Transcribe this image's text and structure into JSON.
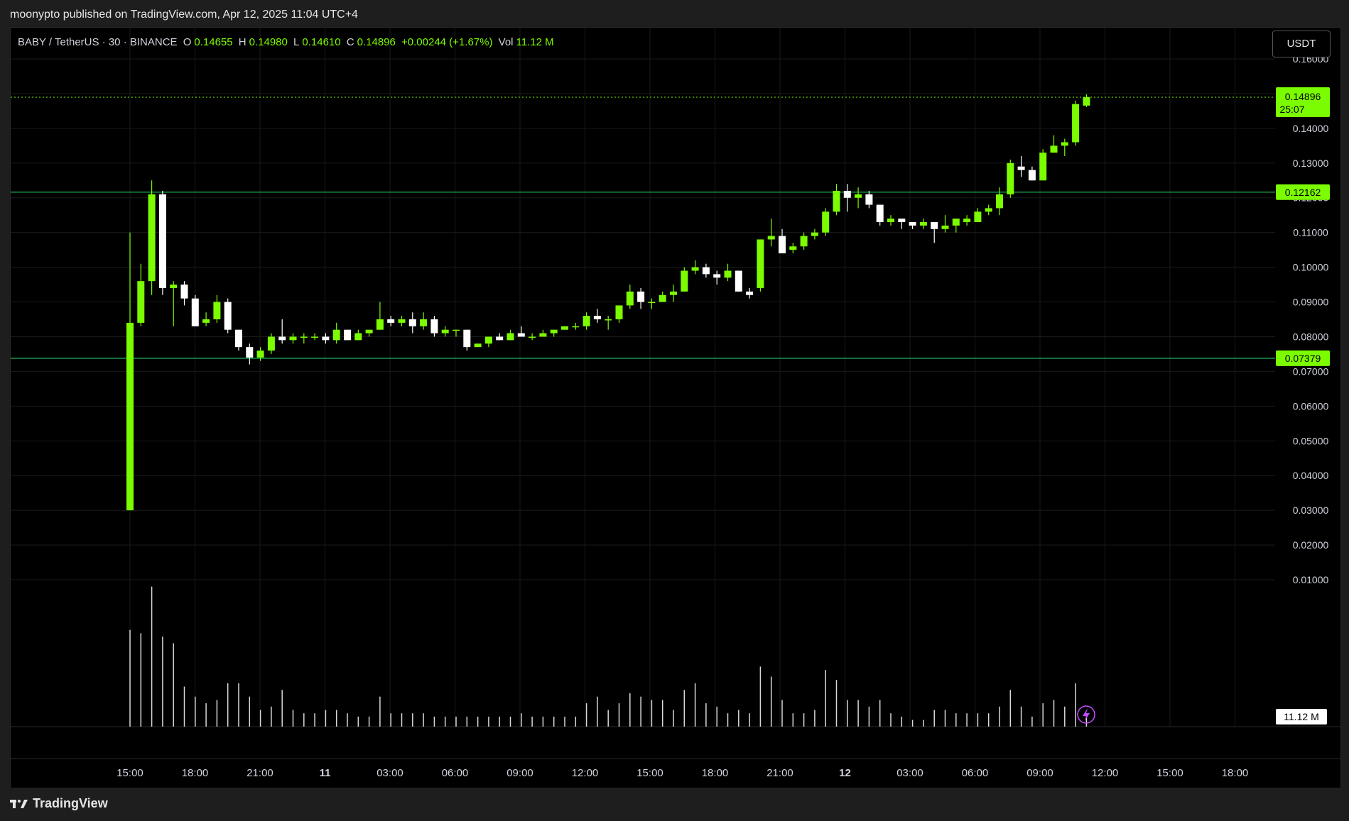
{
  "header": {
    "publish_text": "moonypto published on TradingView.com, Apr 12, 2025 11:04 UTC+4"
  },
  "legend": {
    "symbol": "BABY / TetherUS · 30 · BINANCE",
    "o_label": "O",
    "o_value": "0.14655",
    "h_label": "H",
    "h_value": "0.14980",
    "l_label": "L",
    "l_value": "0.14610",
    "c_label": "C",
    "c_value": "0.14896",
    "change": "+0.00244 (+1.67%)",
    "vol_label": "Vol",
    "vol_value": "11.12 M"
  },
  "currency_button": "USDT",
  "footer": {
    "brand": "TradingView"
  },
  "colors": {
    "up": "#7cfc00",
    "down": "#ffffff",
    "line": "#22c55e",
    "grid": "#1a1a1a",
    "bg": "#000000"
  },
  "chart_data": {
    "type": "candlestick",
    "title": "",
    "ylim": [
      0.0,
      0.165
    ],
    "y_ticks": [
      "0.16000",
      "0.15000",
      "0.14000",
      "0.13000",
      "0.12000",
      "0.11000",
      "0.10000",
      "0.09000",
      "0.08000",
      "0.07000",
      "0.06000",
      "0.05000",
      "0.04000",
      "0.03000",
      "0.02000",
      "0.01000"
    ],
    "x_ticks": [
      "15:00",
      "18:00",
      "21:00",
      "11",
      "03:00",
      "06:00",
      "09:00",
      "12:00",
      "15:00",
      "18:00",
      "21:00",
      "12",
      "03:00",
      "06:00",
      "09:00",
      "12:00",
      "15:00",
      "18:00"
    ],
    "bold_x_ticks": [
      "11",
      "12"
    ],
    "last_price": "0.14896",
    "countdown": "25:07",
    "volume_label": "11.12 M",
    "horizontal_lines": [
      {
        "value": 0.12162,
        "label": "0.12162"
      },
      {
        "value": 0.07379,
        "label": "0.07379"
      }
    ],
    "candles": [
      {
        "o": 0.03,
        "h": 0.11,
        "l": 0.03,
        "c": 0.084,
        "v": 2.9
      },
      {
        "o": 0.084,
        "h": 0.101,
        "l": 0.083,
        "c": 0.096,
        "v": 2.8
      },
      {
        "o": 0.096,
        "h": 0.125,
        "l": 0.092,
        "c": 0.121,
        "v": 4.2
      },
      {
        "o": 0.121,
        "h": 0.122,
        "l": 0.092,
        "c": 0.094,
        "v": 2.7
      },
      {
        "o": 0.094,
        "h": 0.096,
        "l": 0.083,
        "c": 0.095,
        "v": 2.5
      },
      {
        "o": 0.095,
        "h": 0.096,
        "l": 0.089,
        "c": 0.091,
        "v": 1.2
      },
      {
        "o": 0.091,
        "h": 0.092,
        "l": 0.083,
        "c": 0.083,
        "v": 0.9
      },
      {
        "o": 0.084,
        "h": 0.087,
        "l": 0.083,
        "c": 0.085,
        "v": 0.7
      },
      {
        "o": 0.085,
        "h": 0.092,
        "l": 0.084,
        "c": 0.09,
        "v": 0.8
      },
      {
        "o": 0.09,
        "h": 0.091,
        "l": 0.081,
        "c": 0.082,
        "v": 1.3
      },
      {
        "o": 0.082,
        "h": 0.082,
        "l": 0.076,
        "c": 0.077,
        "v": 1.3
      },
      {
        "o": 0.077,
        "h": 0.078,
        "l": 0.072,
        "c": 0.074,
        "v": 0.9
      },
      {
        "o": 0.074,
        "h": 0.077,
        "l": 0.073,
        "c": 0.076,
        "v": 0.5
      },
      {
        "o": 0.076,
        "h": 0.081,
        "l": 0.075,
        "c": 0.08,
        "v": 0.6
      },
      {
        "o": 0.08,
        "h": 0.085,
        "l": 0.078,
        "c": 0.079,
        "v": 1.1
      },
      {
        "o": 0.079,
        "h": 0.081,
        "l": 0.078,
        "c": 0.08,
        "v": 0.5
      },
      {
        "o": 0.08,
        "h": 0.081,
        "l": 0.078,
        "c": 0.08,
        "v": 0.4
      },
      {
        "o": 0.08,
        "h": 0.081,
        "l": 0.079,
        "c": 0.08,
        "v": 0.4
      },
      {
        "o": 0.08,
        "h": 0.081,
        "l": 0.078,
        "c": 0.079,
        "v": 0.5
      },
      {
        "o": 0.079,
        "h": 0.084,
        "l": 0.078,
        "c": 0.082,
        "v": 0.5
      },
      {
        "o": 0.082,
        "h": 0.082,
        "l": 0.079,
        "c": 0.079,
        "v": 0.4
      },
      {
        "o": 0.079,
        "h": 0.082,
        "l": 0.079,
        "c": 0.081,
        "v": 0.3
      },
      {
        "o": 0.081,
        "h": 0.082,
        "l": 0.08,
        "c": 0.082,
        "v": 0.3
      },
      {
        "o": 0.082,
        "h": 0.09,
        "l": 0.082,
        "c": 0.085,
        "v": 0.9
      },
      {
        "o": 0.085,
        "h": 0.086,
        "l": 0.083,
        "c": 0.084,
        "v": 0.4
      },
      {
        "o": 0.084,
        "h": 0.086,
        "l": 0.083,
        "c": 0.085,
        "v": 0.4
      },
      {
        "o": 0.085,
        "h": 0.087,
        "l": 0.081,
        "c": 0.083,
        "v": 0.4
      },
      {
        "o": 0.083,
        "h": 0.087,
        "l": 0.082,
        "c": 0.085,
        "v": 0.4
      },
      {
        "o": 0.085,
        "h": 0.086,
        "l": 0.08,
        "c": 0.081,
        "v": 0.3
      },
      {
        "o": 0.081,
        "h": 0.083,
        "l": 0.08,
        "c": 0.082,
        "v": 0.3
      },
      {
        "o": 0.082,
        "h": 0.082,
        "l": 0.08,
        "c": 0.082,
        "v": 0.3
      },
      {
        "o": 0.082,
        "h": 0.082,
        "l": 0.076,
        "c": 0.077,
        "v": 0.3
      },
      {
        "o": 0.077,
        "h": 0.078,
        "l": 0.077,
        "c": 0.078,
        "v": 0.3
      },
      {
        "o": 0.078,
        "h": 0.08,
        "l": 0.077,
        "c": 0.08,
        "v": 0.3
      },
      {
        "o": 0.08,
        "h": 0.081,
        "l": 0.079,
        "c": 0.079,
        "v": 0.3
      },
      {
        "o": 0.079,
        "h": 0.082,
        "l": 0.079,
        "c": 0.081,
        "v": 0.3
      },
      {
        "o": 0.081,
        "h": 0.083,
        "l": 0.08,
        "c": 0.08,
        "v": 0.4
      },
      {
        "o": 0.08,
        "h": 0.081,
        "l": 0.079,
        "c": 0.08,
        "v": 0.3
      },
      {
        "o": 0.08,
        "h": 0.082,
        "l": 0.08,
        "c": 0.081,
        "v": 0.3
      },
      {
        "o": 0.081,
        "h": 0.082,
        "l": 0.08,
        "c": 0.082,
        "v": 0.3
      },
      {
        "o": 0.082,
        "h": 0.083,
        "l": 0.082,
        "c": 0.083,
        "v": 0.3
      },
      {
        "o": 0.083,
        "h": 0.084,
        "l": 0.082,
        "c": 0.083,
        "v": 0.3
      },
      {
        "o": 0.083,
        "h": 0.087,
        "l": 0.082,
        "c": 0.086,
        "v": 0.7
      },
      {
        "o": 0.086,
        "h": 0.088,
        "l": 0.084,
        "c": 0.085,
        "v": 0.9
      },
      {
        "o": 0.085,
        "h": 0.086,
        "l": 0.082,
        "c": 0.085,
        "v": 0.5
      },
      {
        "o": 0.085,
        "h": 0.089,
        "l": 0.084,
        "c": 0.089,
        "v": 0.7
      },
      {
        "o": 0.089,
        "h": 0.095,
        "l": 0.088,
        "c": 0.093,
        "v": 1.0
      },
      {
        "o": 0.093,
        "h": 0.094,
        "l": 0.088,
        "c": 0.09,
        "v": 0.9
      },
      {
        "o": 0.09,
        "h": 0.091,
        "l": 0.088,
        "c": 0.09,
        "v": 0.8
      },
      {
        "o": 0.09,
        "h": 0.093,
        "l": 0.09,
        "c": 0.092,
        "v": 0.8
      },
      {
        "o": 0.092,
        "h": 0.095,
        "l": 0.09,
        "c": 0.093,
        "v": 0.5
      },
      {
        "o": 0.093,
        "h": 0.1,
        "l": 0.093,
        "c": 0.099,
        "v": 1.1
      },
      {
        "o": 0.099,
        "h": 0.102,
        "l": 0.098,
        "c": 0.1,
        "v": 1.3
      },
      {
        "o": 0.1,
        "h": 0.101,
        "l": 0.097,
        "c": 0.098,
        "v": 0.7
      },
      {
        "o": 0.098,
        "h": 0.099,
        "l": 0.095,
        "c": 0.097,
        "v": 0.6
      },
      {
        "o": 0.097,
        "h": 0.101,
        "l": 0.096,
        "c": 0.099,
        "v": 0.4
      },
      {
        "o": 0.099,
        "h": 0.099,
        "l": 0.093,
        "c": 0.093,
        "v": 0.5
      },
      {
        "o": 0.093,
        "h": 0.094,
        "l": 0.091,
        "c": 0.092,
        "v": 0.4
      },
      {
        "o": 0.094,
        "h": 0.108,
        "l": 0.093,
        "c": 0.108,
        "v": 1.8
      },
      {
        "o": 0.108,
        "h": 0.114,
        "l": 0.106,
        "c": 0.109,
        "v": 1.5
      },
      {
        "o": 0.109,
        "h": 0.111,
        "l": 0.104,
        "c": 0.104,
        "v": 0.8
      },
      {
        "o": 0.105,
        "h": 0.107,
        "l": 0.104,
        "c": 0.106,
        "v": 0.4
      },
      {
        "o": 0.106,
        "h": 0.11,
        "l": 0.105,
        "c": 0.109,
        "v": 0.4
      },
      {
        "o": 0.109,
        "h": 0.111,
        "l": 0.108,
        "c": 0.11,
        "v": 0.5
      },
      {
        "o": 0.11,
        "h": 0.117,
        "l": 0.109,
        "c": 0.116,
        "v": 1.7
      },
      {
        "o": 0.116,
        "h": 0.124,
        "l": 0.115,
        "c": 0.122,
        "v": 1.4
      },
      {
        "o": 0.122,
        "h": 0.124,
        "l": 0.116,
        "c": 0.12,
        "v": 0.8
      },
      {
        "o": 0.12,
        "h": 0.123,
        "l": 0.117,
        "c": 0.121,
        "v": 0.8
      },
      {
        "o": 0.121,
        "h": 0.122,
        "l": 0.117,
        "c": 0.118,
        "v": 0.6
      },
      {
        "o": 0.118,
        "h": 0.118,
        "l": 0.112,
        "c": 0.113,
        "v": 0.8
      },
      {
        "o": 0.113,
        "h": 0.115,
        "l": 0.112,
        "c": 0.114,
        "v": 0.4
      },
      {
        "o": 0.114,
        "h": 0.114,
        "l": 0.111,
        "c": 0.113,
        "v": 0.3
      },
      {
        "o": 0.113,
        "h": 0.113,
        "l": 0.111,
        "c": 0.112,
        "v": 0.2
      },
      {
        "o": 0.112,
        "h": 0.114,
        "l": 0.111,
        "c": 0.113,
        "v": 0.2
      },
      {
        "o": 0.113,
        "h": 0.113,
        "l": 0.107,
        "c": 0.111,
        "v": 0.5
      },
      {
        "o": 0.111,
        "h": 0.115,
        "l": 0.11,
        "c": 0.112,
        "v": 0.5
      },
      {
        "o": 0.112,
        "h": 0.114,
        "l": 0.11,
        "c": 0.114,
        "v": 0.4
      },
      {
        "o": 0.113,
        "h": 0.115,
        "l": 0.112,
        "c": 0.114,
        "v": 0.4
      },
      {
        "o": 0.113,
        "h": 0.117,
        "l": 0.113,
        "c": 0.116,
        "v": 0.4
      },
      {
        "o": 0.116,
        "h": 0.118,
        "l": 0.115,
        "c": 0.117,
        "v": 0.4
      },
      {
        "o": 0.117,
        "h": 0.123,
        "l": 0.115,
        "c": 0.121,
        "v": 0.6
      },
      {
        "o": 0.121,
        "h": 0.131,
        "l": 0.12,
        "c": 0.13,
        "v": 1.1
      },
      {
        "o": 0.129,
        "h": 0.132,
        "l": 0.126,
        "c": 0.128,
        "v": 0.6
      },
      {
        "o": 0.128,
        "h": 0.129,
        "l": 0.125,
        "c": 0.125,
        "v": 0.3
      },
      {
        "o": 0.125,
        "h": 0.134,
        "l": 0.125,
        "c": 0.133,
        "v": 0.7
      },
      {
        "o": 0.133,
        "h": 0.138,
        "l": 0.133,
        "c": 0.135,
        "v": 0.8
      },
      {
        "o": 0.135,
        "h": 0.137,
        "l": 0.132,
        "c": 0.136,
        "v": 0.6
      },
      {
        "o": 0.136,
        "h": 0.148,
        "l": 0.135,
        "c": 0.147,
        "v": 1.3
      },
      {
        "o": 0.14655,
        "h": 0.1498,
        "l": 0.1461,
        "c": 0.14896,
        "v": 0.4
      }
    ]
  }
}
